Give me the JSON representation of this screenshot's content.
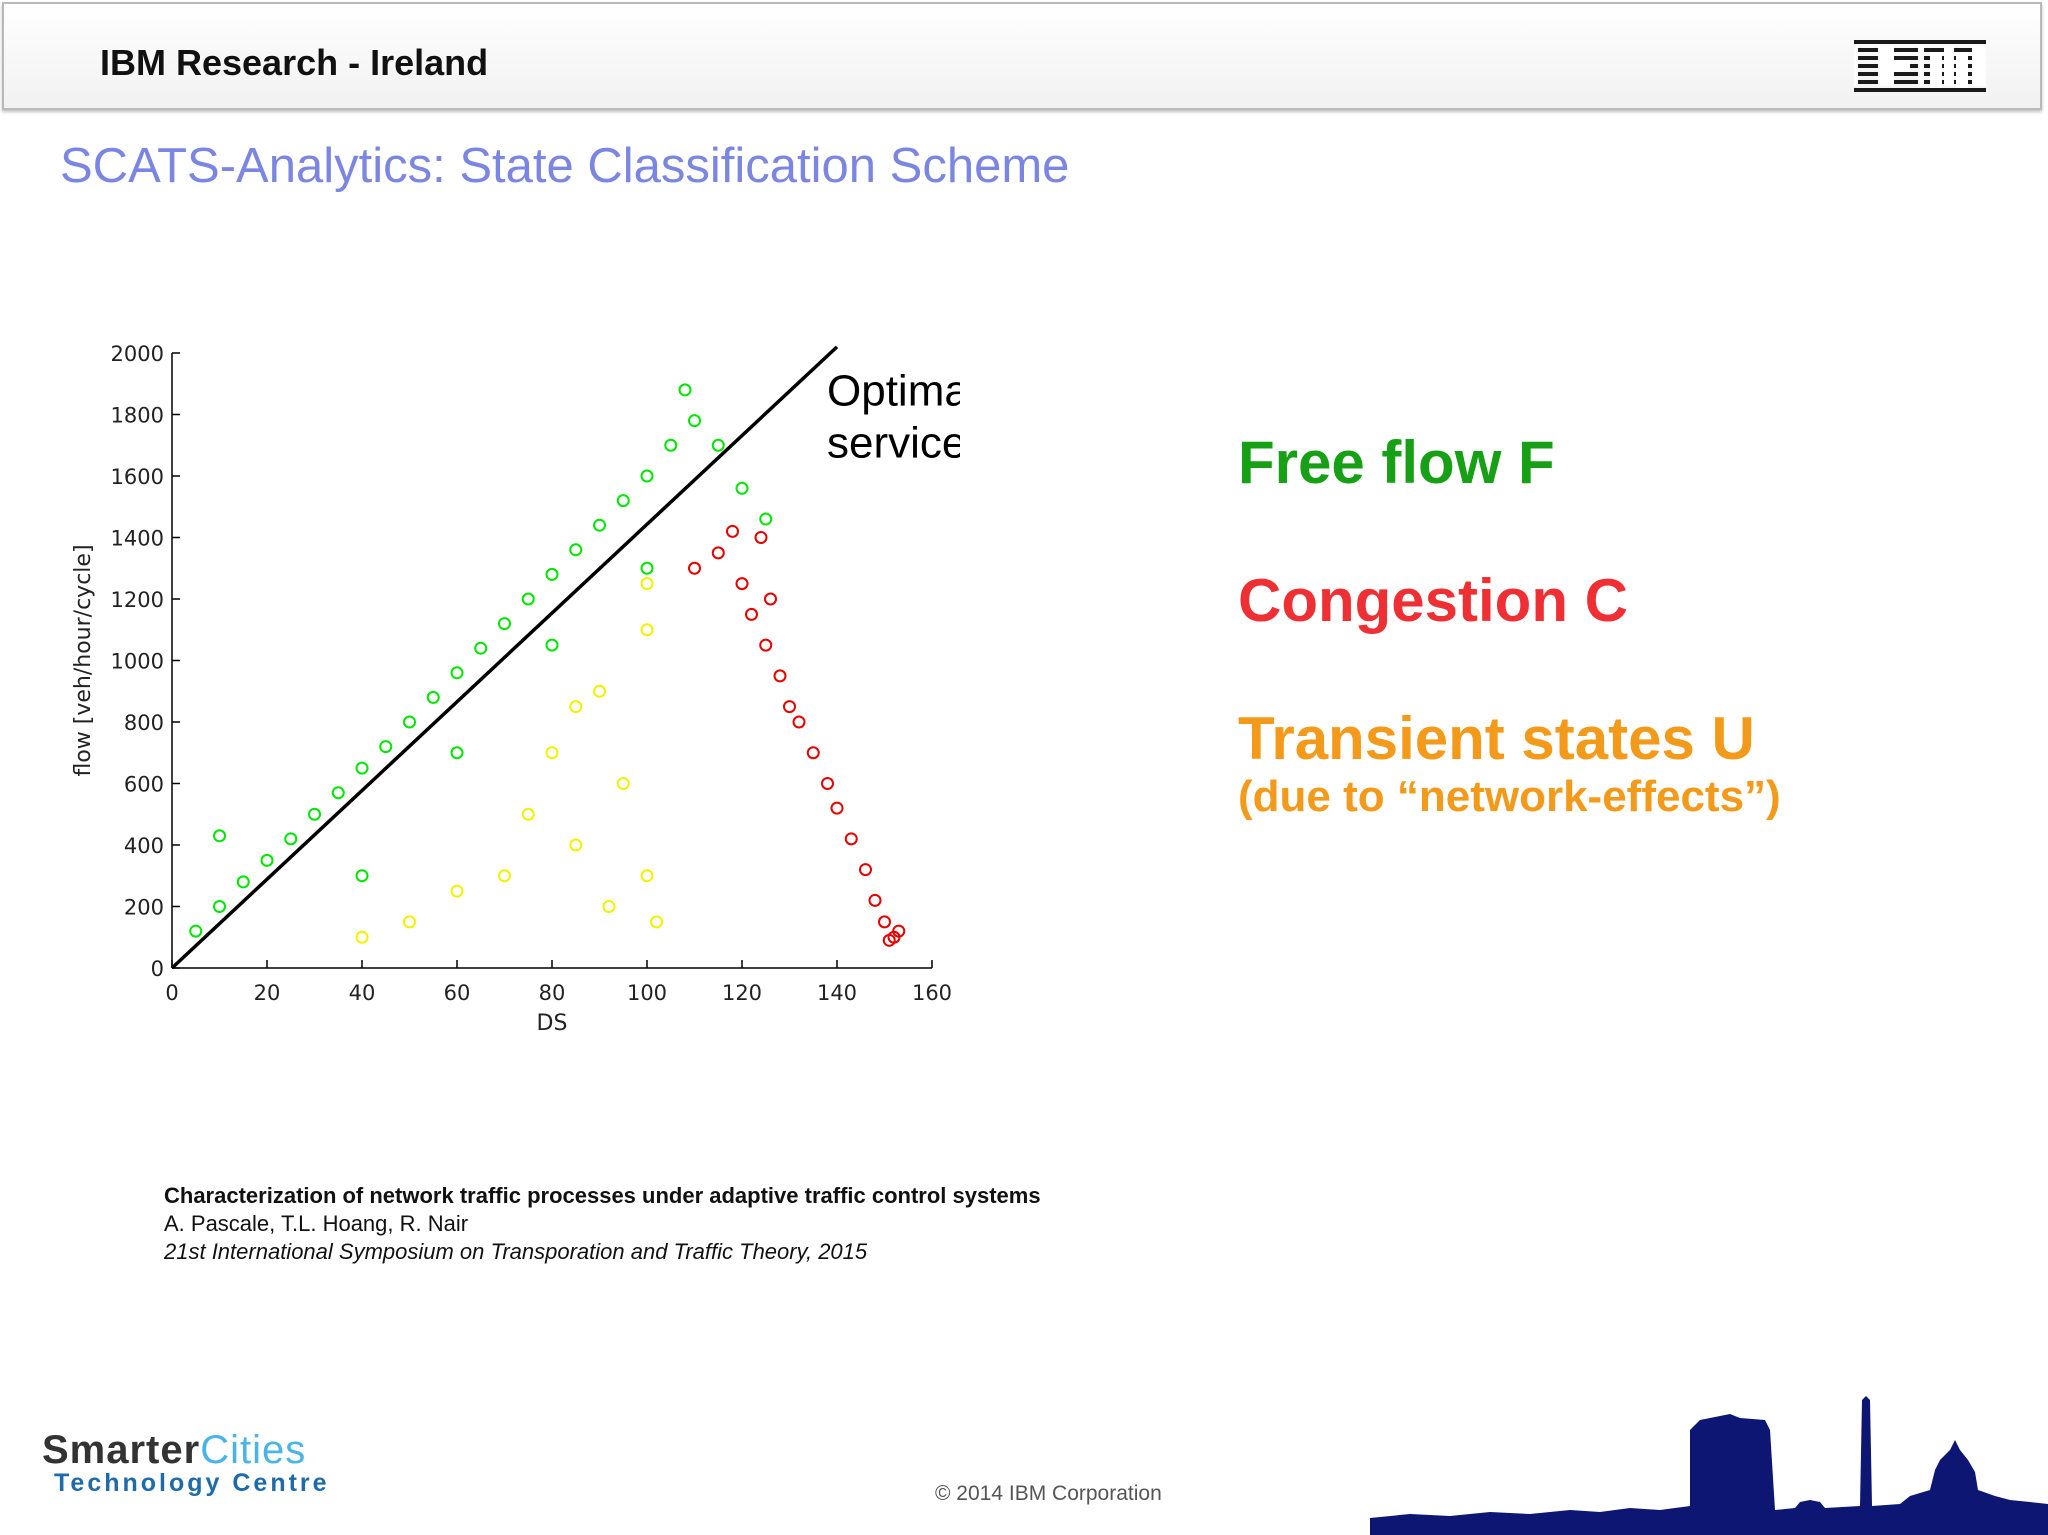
{
  "header": {
    "title": "IBM Research - Ireland",
    "logo": "IBM"
  },
  "slide_title": "SCATS-Analytics: State Classification Scheme",
  "chart_data": {
    "type": "scatter",
    "xlabel": "DS",
    "ylabel": "flow [veh/hour/cycle]",
    "xlim": [
      0,
      160
    ],
    "ylim": [
      0,
      2000
    ],
    "xticks": [
      0,
      20,
      40,
      60,
      80,
      100,
      120,
      140,
      160
    ],
    "yticks": [
      0,
      200,
      400,
      600,
      800,
      1000,
      1200,
      1400,
      1600,
      1800,
      2000
    ],
    "grid": false,
    "line": {
      "label": "Optimal service rate",
      "x": [
        0,
        140
      ],
      "y": [
        0,
        2020
      ],
      "color": "#000000"
    },
    "series": [
      {
        "class": "green",
        "color": "#00e600",
        "marker": "circle-open",
        "points": [
          [
            5,
            120
          ],
          [
            10,
            200
          ],
          [
            15,
            280
          ],
          [
            20,
            350
          ],
          [
            25,
            420
          ],
          [
            30,
            500
          ],
          [
            35,
            570
          ],
          [
            40,
            650
          ],
          [
            45,
            720
          ],
          [
            50,
            800
          ],
          [
            55,
            880
          ],
          [
            60,
            960
          ],
          [
            65,
            1040
          ],
          [
            70,
            1120
          ],
          [
            75,
            1200
          ],
          [
            80,
            1280
          ],
          [
            85,
            1360
          ],
          [
            90,
            1440
          ],
          [
            95,
            1520
          ],
          [
            100,
            1600
          ],
          [
            105,
            1700
          ],
          [
            108,
            1880
          ],
          [
            110,
            1780
          ],
          [
            115,
            1700
          ],
          [
            120,
            1560
          ],
          [
            125,
            1460
          ],
          [
            10,
            430
          ],
          [
            40,
            300
          ],
          [
            60,
            700
          ],
          [
            80,
            1050
          ],
          [
            100,
            1300
          ]
        ]
      },
      {
        "class": "yellow",
        "color": "#f2f200",
        "marker": "circle-open",
        "points": [
          [
            40,
            100
          ],
          [
            50,
            150
          ],
          [
            60,
            250
          ],
          [
            70,
            300
          ],
          [
            75,
            500
          ],
          [
            80,
            700
          ],
          [
            85,
            400
          ],
          [
            90,
            900
          ],
          [
            95,
            600
          ],
          [
            100,
            1100
          ],
          [
            100,
            300
          ],
          [
            102,
            150
          ],
          [
            100,
            1250
          ],
          [
            92,
            200
          ],
          [
            85,
            850
          ]
        ]
      },
      {
        "class": "red",
        "color": "#e60000",
        "marker": "circle-open",
        "points": [
          [
            110,
            1300
          ],
          [
            115,
            1350
          ],
          [
            118,
            1420
          ],
          [
            120,
            1250
          ],
          [
            122,
            1150
          ],
          [
            125,
            1050
          ],
          [
            128,
            950
          ],
          [
            130,
            850
          ],
          [
            132,
            800
          ],
          [
            135,
            700
          ],
          [
            138,
            600
          ],
          [
            140,
            520
          ],
          [
            143,
            420
          ],
          [
            146,
            320
          ],
          [
            148,
            220
          ],
          [
            150,
            150
          ],
          [
            152,
            100
          ],
          [
            153,
            120
          ],
          [
            151,
            90
          ],
          [
            126,
            1200
          ],
          [
            124,
            1400
          ]
        ]
      }
    ]
  },
  "legend": {
    "free": "Free flow F",
    "congestion": "Congestion C",
    "transient": "Transient states U",
    "transient_note": "(due to “network-effects”)"
  },
  "citation": {
    "title": "Characterization of network traffic processes under adaptive traffic control systems",
    "authors": "A. Pascale, T.L. Hoang, R. Nair",
    "venue": "21st International Symposium on Transporation and Traffic Theory, 2015"
  },
  "footer": {
    "brand_smarter": "Smarter",
    "brand_cities": "Cities",
    "brand_centre": "Technology Centre",
    "copyright": "© 2014 IBM Corporation"
  }
}
